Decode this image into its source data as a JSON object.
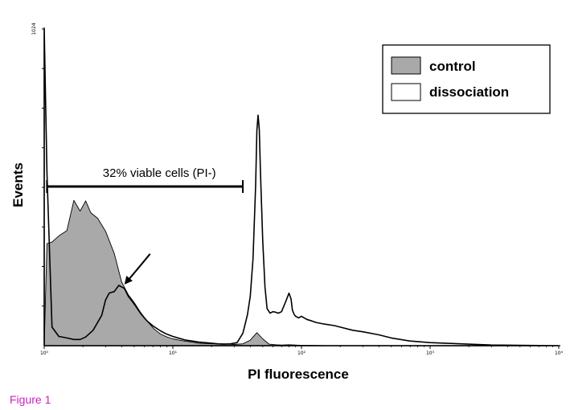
{
  "chart_data": {
    "type": "area",
    "xlabel": "PI fluorescence",
    "ylabel": "Events",
    "x_scale": "log",
    "xlim": [
      1,
      10000
    ],
    "ylim": [
      0,
      1024
    ],
    "x_ticks": [
      "10⁰",
      "10¹",
      "10²",
      "10³",
      "10⁴"
    ],
    "y_ticks": [
      "1024"
    ],
    "legend": {
      "position": "top-right",
      "entries": [
        {
          "name": "control",
          "fill": "#a9a9a9"
        },
        {
          "name": "dissociation",
          "fill": "#ffffff"
        }
      ]
    },
    "annotations": [
      {
        "text": "32% viable cells (PI-)",
        "x_start": 1.05,
        "x_end": 35
      },
      {
        "type": "arrow",
        "x": 4.2,
        "y": 198
      }
    ],
    "series": [
      {
        "name": "control",
        "color": "#a9a9a9",
        "x": [
          1,
          1.05,
          1.15,
          1.3,
          1.5,
          1.7,
          1.9,
          2.1,
          2.3,
          2.6,
          3.0,
          3.5,
          4.0,
          4.5,
          5.0,
          5.6,
          6.3,
          7.1,
          8.0,
          9.0,
          10,
          11.2,
          12.6,
          14.1,
          15.8,
          17.8,
          20,
          25,
          30,
          35,
          40,
          45,
          50,
          56,
          63,
          70,
          80,
          90,
          100,
          120,
          150
        ],
        "y": [
          0,
          330,
          335,
          355,
          372,
          470,
          435,
          468,
          430,
          412,
          370,
          298,
          206,
          165,
          140,
          108,
          80,
          55,
          38,
          28,
          22,
          18,
          14,
          12,
          8,
          7,
          6,
          6,
          4,
          6,
          18,
          42,
          22,
          5,
          3,
          2,
          3,
          2,
          1,
          1,
          0
        ]
      },
      {
        "name": "dissociation",
        "color": "#ffffff",
        "x": [
          1,
          1.05,
          1.15,
          1.3,
          1.5,
          1.7,
          1.9,
          2.1,
          2.4,
          2.8,
          3.0,
          3.2,
          3.5,
          3.8,
          4.0,
          4.2,
          4.5,
          4.8,
          5.1,
          5.6,
          6.0,
          6.3,
          7.1,
          8.0,
          8.9,
          10,
          11.2,
          12.6,
          14.1,
          15.8,
          17.8,
          20,
          22.4,
          25,
          28.2,
          31.6,
          35,
          38,
          40,
          42,
          44,
          45,
          46,
          47,
          48,
          50,
          52,
          54,
          57,
          60,
          63,
          66,
          70,
          75,
          80,
          83,
          85,
          88,
          90,
          95,
          100,
          110,
          120,
          130,
          150,
          180,
          200,
          250,
          300,
          400,
          500,
          700,
          1000,
          3000,
          10000
        ],
        "y": [
          1024,
          560,
          60,
          30,
          25,
          20,
          20,
          28,
          50,
          98,
          148,
          170,
          175,
          195,
          190,
          185,
          160,
          145,
          130,
          105,
          90,
          80,
          62,
          48,
          38,
          30,
          24,
          18,
          15,
          12,
          10,
          8,
          6,
          5,
          6,
          10,
          40,
          100,
          160,
          280,
          520,
          695,
          745,
          700,
          560,
          340,
          190,
          120,
          105,
          110,
          108,
          105,
          110,
          140,
          170,
          150,
          115,
          100,
          95,
          90,
          95,
          85,
          80,
          75,
          70,
          65,
          60,
          50,
          45,
          35,
          25,
          15,
          10,
          2,
          0
        ]
      }
    ]
  },
  "figure_caption": "Figure 1"
}
